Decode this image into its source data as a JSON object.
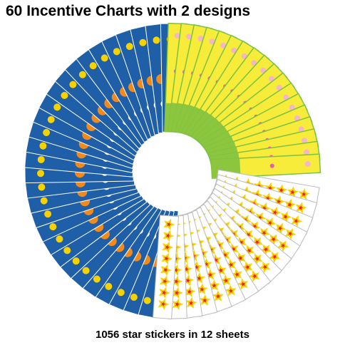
{
  "header": {
    "title": "60  Incentive Charts with 2 designs"
  },
  "footer": {
    "caption": "1056 star stickers in 12 sheets"
  }
}
